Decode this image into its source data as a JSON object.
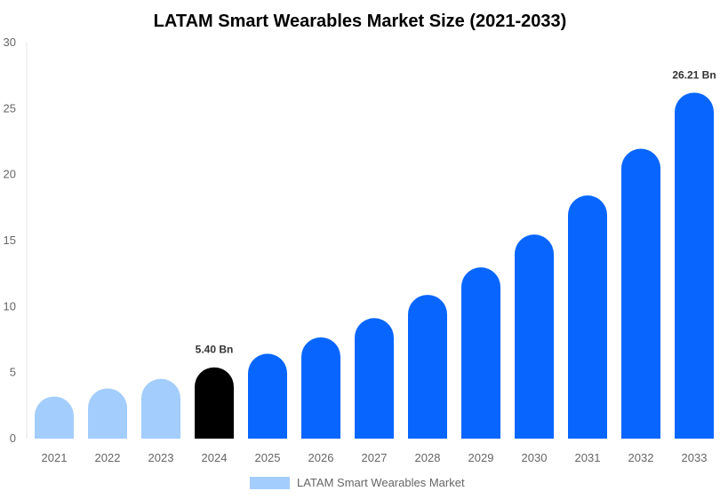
{
  "chart_data": {
    "type": "bar",
    "title": "LATAM Smart Wearables Market Size (2021-2033)",
    "categories": [
      "2021",
      "2022",
      "2023",
      "2024",
      "2025",
      "2026",
      "2027",
      "2028",
      "2029",
      "2030",
      "2031",
      "2032",
      "2033"
    ],
    "series": [
      {
        "name": "LATAM Smart Wearables Market",
        "values": [
          3.19,
          3.8,
          4.53,
          5.4,
          6.43,
          7.67,
          9.13,
          10.89,
          12.97,
          15.46,
          18.42,
          21.96,
          26.21
        ]
      }
    ],
    "data_labels": {
      "2024": "5.40 Bn",
      "2033": "26.21 Bn"
    },
    "ylim": [
      0,
      30
    ],
    "yticks": [
      "0",
      "5",
      "10",
      "15",
      "20",
      "25",
      "30"
    ],
    "xlabel": "",
    "ylabel": "",
    "grid": false,
    "legend": "bottom",
    "colors": {
      "historical": "#a3cdfc",
      "base_year": "#000000",
      "forecast": "#0866ff",
      "legend": "#a3cdfc"
    }
  }
}
